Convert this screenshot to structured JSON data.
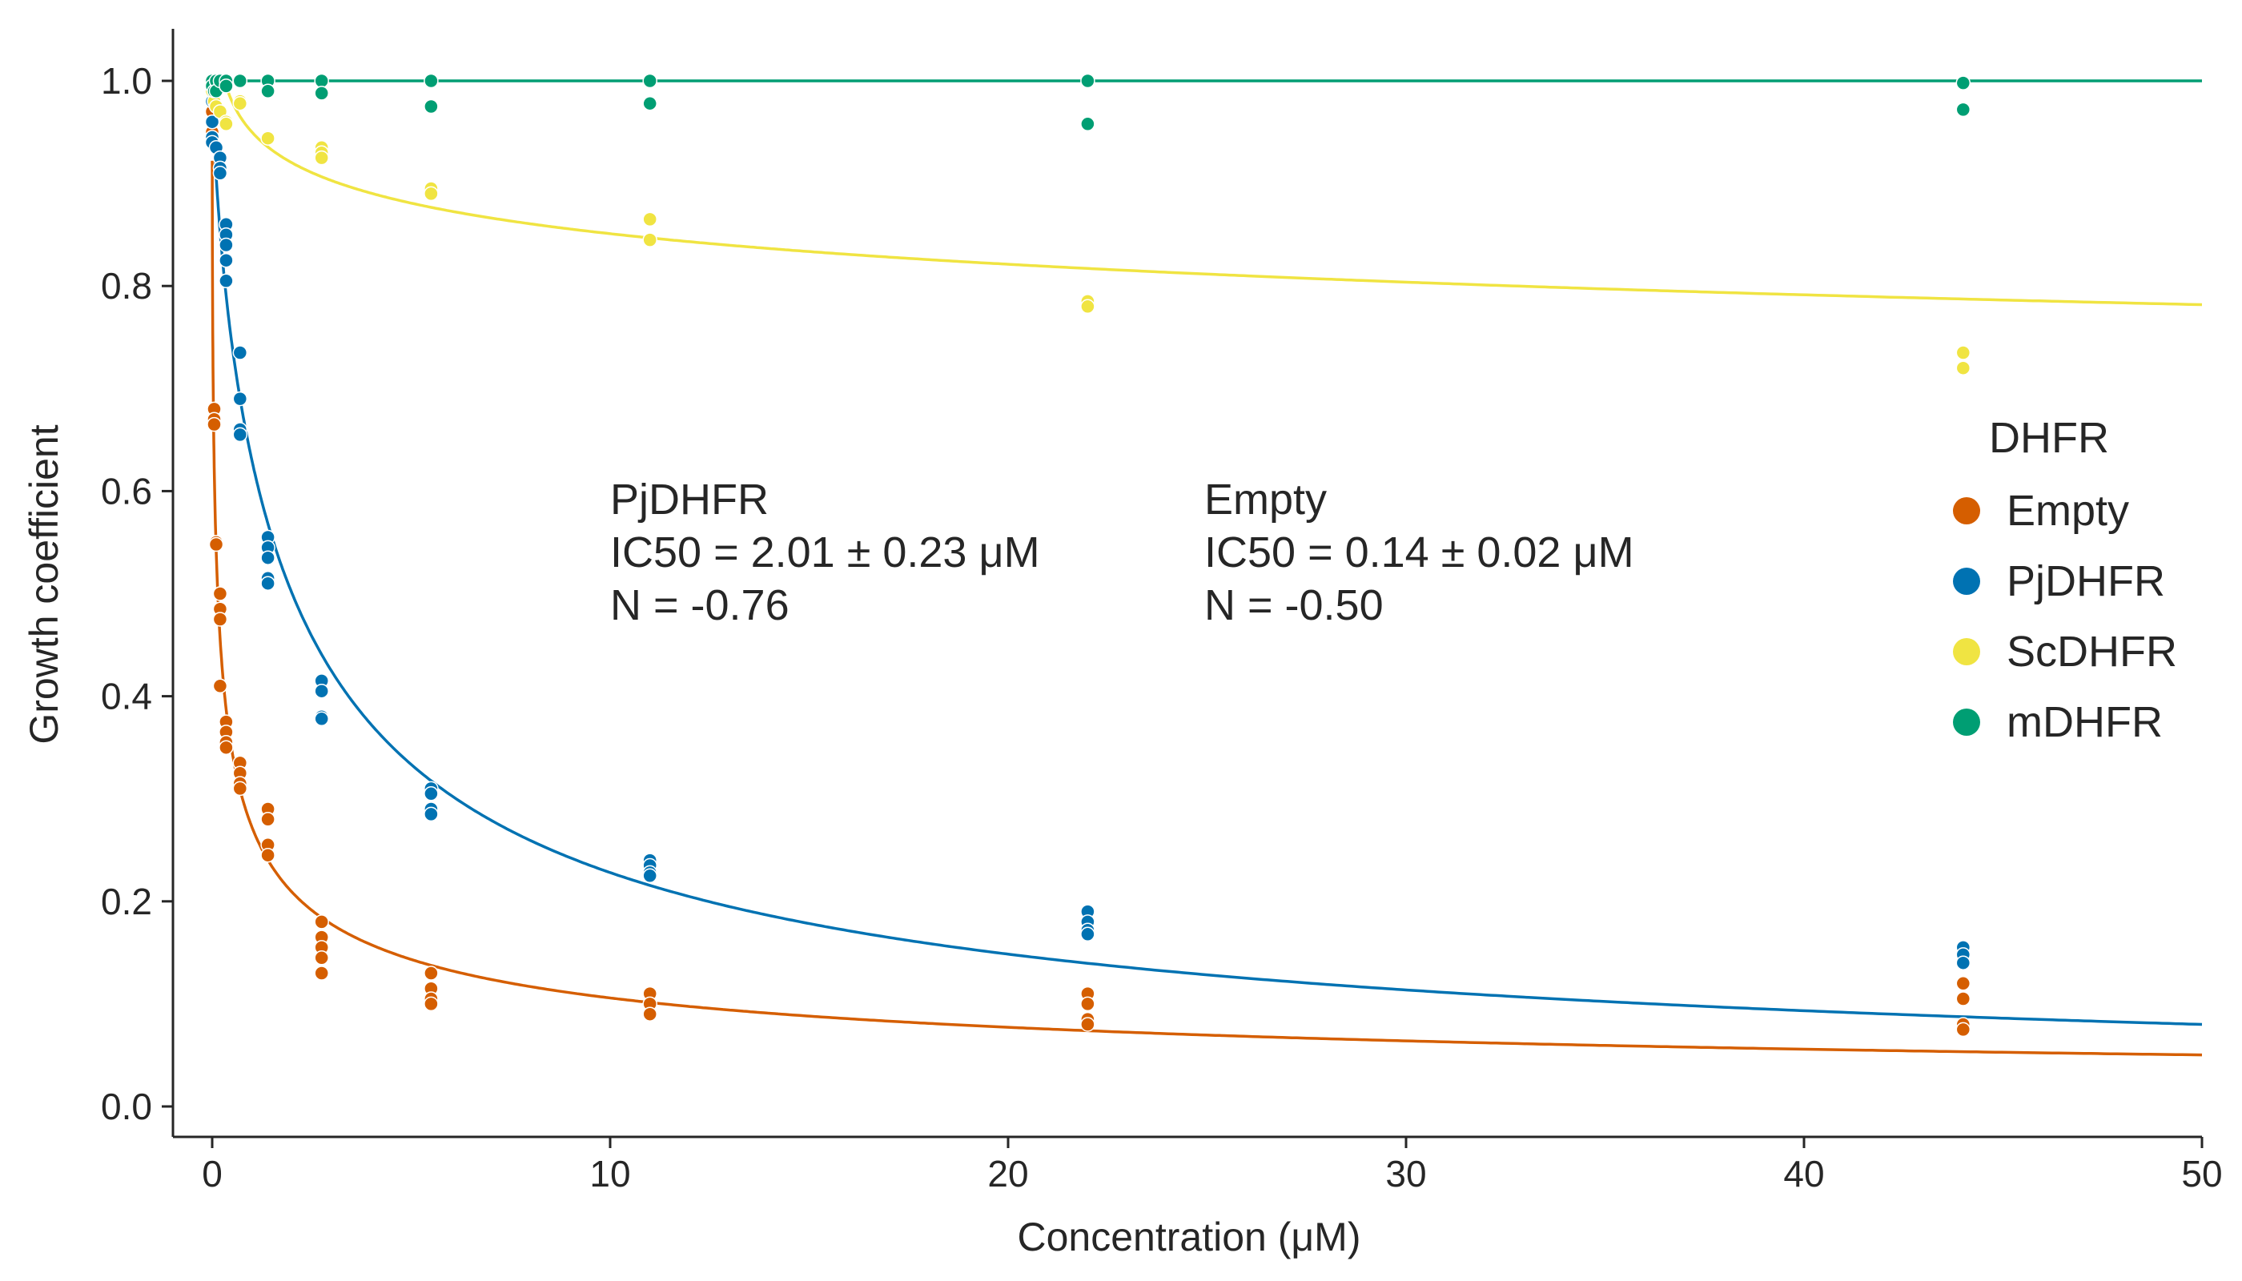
{
  "chart_data": {
    "type": "scatter",
    "xlabel": "Concentration (μM)",
    "ylabel": "Growth coefficient",
    "xlim": [
      -1,
      50
    ],
    "ylim": [
      -0.03,
      1.05
    ],
    "xticks": [
      0,
      10,
      20,
      30,
      40,
      50
    ],
    "yticks": [
      0.0,
      0.2,
      0.4,
      0.6,
      0.8,
      1.0
    ],
    "xtick_labels": [
      "0",
      "10",
      "20",
      "30",
      "40",
      "50"
    ],
    "ytick_labels": [
      "0.0",
      "0.2",
      "0.4",
      "0.6",
      "0.8",
      "1.0"
    ],
    "grid": false,
    "legend": {
      "title": "DHFR",
      "position": "right",
      "entries": [
        "Empty",
        "PjDHFR",
        "ScDHFR",
        "mDHFR"
      ]
    },
    "annotations": [
      {
        "lines": [
          "PjDHFR",
          "IC50 = 2.01 ± 0.23 μM",
          "N = -0.76"
        ]
      },
      {
        "lines": [
          "Empty",
          "IC50 = 0.14 ± 0.02 μM",
          "N = -0.50"
        ]
      }
    ],
    "series": [
      {
        "name": "Empty",
        "color": "#d55e00",
        "points": [
          [
            0,
            1.0
          ],
          [
            0,
            0.99
          ],
          [
            0,
            0.97
          ],
          [
            0,
            0.95
          ],
          [
            0,
            0.94
          ],
          [
            0.05,
            0.68
          ],
          [
            0.05,
            0.67
          ],
          [
            0.05,
            0.665
          ],
          [
            0.1,
            0.55
          ],
          [
            0.1,
            0.548
          ],
          [
            0.2,
            0.5
          ],
          [
            0.2,
            0.485
          ],
          [
            0.2,
            0.475
          ],
          [
            0.2,
            0.41
          ],
          [
            0.35,
            0.375
          ],
          [
            0.35,
            0.365
          ],
          [
            0.35,
            0.355
          ],
          [
            0.35,
            0.35
          ],
          [
            0.7,
            0.335
          ],
          [
            0.7,
            0.325
          ],
          [
            0.7,
            0.315
          ],
          [
            0.7,
            0.31
          ],
          [
            1.4,
            0.29
          ],
          [
            1.4,
            0.28
          ],
          [
            1.4,
            0.255
          ],
          [
            1.4,
            0.245
          ],
          [
            2.75,
            0.18
          ],
          [
            2.75,
            0.165
          ],
          [
            2.75,
            0.155
          ],
          [
            2.75,
            0.145
          ],
          [
            2.75,
            0.13
          ],
          [
            5.5,
            0.13
          ],
          [
            5.5,
            0.115
          ],
          [
            5.5,
            0.105
          ],
          [
            5.5,
            0.1
          ],
          [
            11,
            0.11
          ],
          [
            11,
            0.1
          ],
          [
            11,
            0.09
          ],
          [
            22,
            0.11
          ],
          [
            22,
            0.1
          ],
          [
            22,
            0.085
          ],
          [
            22,
            0.08
          ],
          [
            44,
            0.12
          ],
          [
            44,
            0.105
          ],
          [
            44,
            0.08
          ],
          [
            44,
            0.075
          ]
        ],
        "fit": {
          "ic50": 0.14,
          "n": -0.5,
          "top": 1.0
        }
      },
      {
        "name": "PjDHFR",
        "color": "#0072b2",
        "points": [
          [
            0,
            0.995
          ],
          [
            0,
            0.98
          ],
          [
            0,
            0.96
          ],
          [
            0,
            0.945
          ],
          [
            0,
            0.94
          ],
          [
            0.1,
            0.935
          ],
          [
            0.2,
            0.925
          ],
          [
            0.2,
            0.915
          ],
          [
            0.2,
            0.91
          ],
          [
            0.35,
            0.86
          ],
          [
            0.35,
            0.85
          ],
          [
            0.35,
            0.84
          ],
          [
            0.35,
            0.825
          ],
          [
            0.35,
            0.805
          ],
          [
            0.7,
            0.735
          ],
          [
            0.7,
            0.69
          ],
          [
            0.7,
            0.66
          ],
          [
            0.7,
            0.655
          ],
          [
            1.4,
            0.555
          ],
          [
            1.4,
            0.545
          ],
          [
            1.4,
            0.535
          ],
          [
            1.4,
            0.515
          ],
          [
            1.4,
            0.51
          ],
          [
            2.75,
            0.415
          ],
          [
            2.75,
            0.405
          ],
          [
            2.75,
            0.38
          ],
          [
            2.75,
            0.378
          ],
          [
            5.5,
            0.31
          ],
          [
            5.5,
            0.305
          ],
          [
            5.5,
            0.29
          ],
          [
            5.5,
            0.285
          ],
          [
            11,
            0.24
          ],
          [
            11,
            0.235
          ],
          [
            11,
            0.228
          ],
          [
            11,
            0.225
          ],
          [
            22,
            0.19
          ],
          [
            22,
            0.18
          ],
          [
            22,
            0.172
          ],
          [
            22,
            0.168
          ],
          [
            44,
            0.155
          ],
          [
            44,
            0.148
          ],
          [
            44,
            0.14
          ]
        ],
        "fit": {
          "ic50": 2.01,
          "n": -0.76,
          "top": 1.0
        }
      },
      {
        "name": "ScDHFR",
        "color": "#f0e442",
        "points": [
          [
            0,
            1.0
          ],
          [
            0,
            0.99
          ],
          [
            0.05,
            0.98
          ],
          [
            0.1,
            0.975
          ],
          [
            0.2,
            0.97
          ],
          [
            0.35,
            0.96
          ],
          [
            0.35,
            0.958
          ],
          [
            0.7,
            0.98
          ],
          [
            0.7,
            0.978
          ],
          [
            1.4,
            0.945
          ],
          [
            1.4,
            0.944
          ],
          [
            2.75,
            0.935
          ],
          [
            2.75,
            0.93
          ],
          [
            2.75,
            0.925
          ],
          [
            5.5,
            0.895
          ],
          [
            5.5,
            0.89
          ],
          [
            11,
            0.865
          ],
          [
            11,
            0.845
          ],
          [
            22,
            0.785
          ],
          [
            22,
            0.78
          ],
          [
            44,
            0.735
          ],
          [
            44,
            0.72
          ]
        ],
        "fit": {
          "coef_at_1uM": 0.95,
          "log_slope": -0.043
        }
      },
      {
        "name": "mDHFR",
        "color": "#009e73",
        "points": [
          [
            0,
            1.0
          ],
          [
            0,
            0.995
          ],
          [
            0.05,
            0.99
          ],
          [
            0.1,
            1.0
          ],
          [
            0.1,
            0.99
          ],
          [
            0.2,
            1.0
          ],
          [
            0.35,
            1.0
          ],
          [
            0.35,
            0.995
          ],
          [
            0.7,
            1.0
          ],
          [
            1.4,
            1.0
          ],
          [
            1.4,
            0.99
          ],
          [
            2.75,
            1.0
          ],
          [
            2.75,
            0.988
          ],
          [
            5.5,
            1.0
          ],
          [
            5.5,
            0.975
          ],
          [
            11,
            1.0
          ],
          [
            11,
            0.978
          ],
          [
            22,
            1.0
          ],
          [
            22,
            0.958
          ],
          [
            44,
            0.998
          ],
          [
            44,
            0.972
          ]
        ],
        "fit": {
          "constant": 1.0
        }
      }
    ]
  }
}
